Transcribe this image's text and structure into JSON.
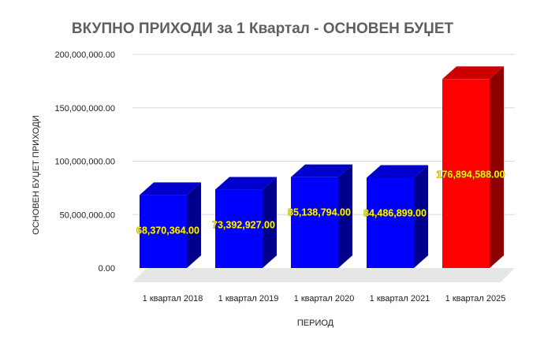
{
  "chart_data": {
    "type": "bar",
    "title": "ВКУПНО ПРИХОДИ за 1 Квартал - ОСНОВЕН БУЏЕТ",
    "xlabel": "ПЕРИОД",
    "ylabel": "ОСНОВЕН БУЏЕТ ПРИХОДИ",
    "categories": [
      "1 квартал 2018",
      "1 квартал 2019",
      "1 квартал 2020",
      "1 квартал 2021",
      "1 квартал 2025"
    ],
    "values": [
      68370364.0,
      73392927.0,
      85138794.0,
      84486899.0,
      176894588.0
    ],
    "value_labels": [
      "68,370,364.00",
      "73,392,927.00",
      "85,138,794.00",
      "84,486,899.00",
      "176,894,588.00"
    ],
    "ylim": [
      0,
      200000000
    ],
    "yticks": [
      0,
      50000000,
      100000000,
      150000000,
      200000000
    ],
    "ytick_labels": [
      "0.00",
      "50,000,000.00",
      "100,000,000.00",
      "150,000,000.00",
      "200,000,000.00"
    ],
    "grid": true,
    "style": "3d",
    "colors": [
      "#0000ff",
      "#0000ff",
      "#0000ff",
      "#0000ff",
      "#ff0000"
    ],
    "label_color": "#fff200"
  }
}
